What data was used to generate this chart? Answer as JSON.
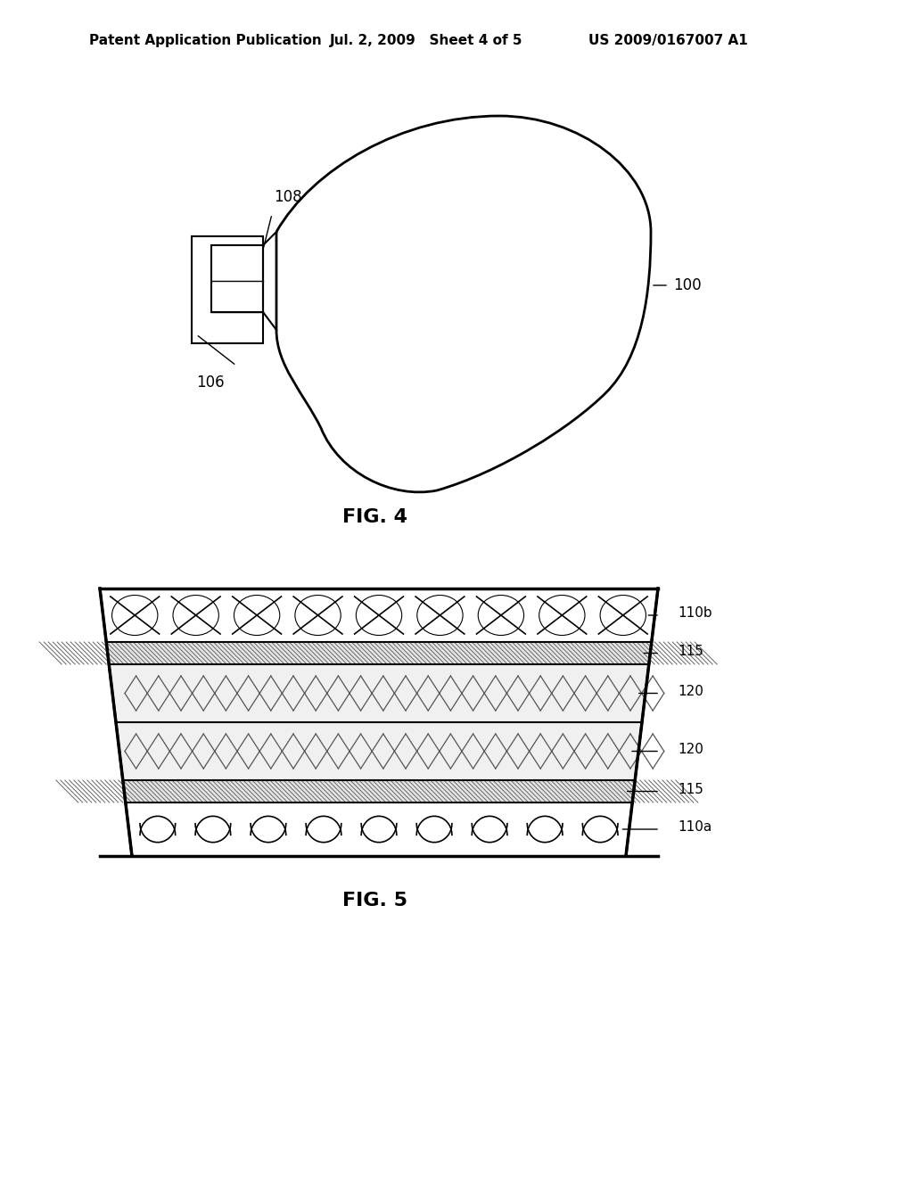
{
  "background_color": "#ffffff",
  "header_left": "Patent Application Publication",
  "header_mid": "Jul. 2, 2009   Sheet 4 of 5",
  "header_right": "US 2009/0167007 A1",
  "fig4_label": "FIG. 4",
  "fig5_label": "FIG. 5",
  "label_100": "100",
  "label_106": "106",
  "label_108": "108",
  "label_110b": "110b",
  "label_115_top": "115",
  "label_120_top": "120",
  "label_120_bot": "120",
  "label_115_bot": "115",
  "label_110a": "110a",
  "line_color": "#000000",
  "hatch_color": "#555555",
  "layer_fill_light": "#e8e8e8",
  "layer_fill_mid": "#d0d0d0"
}
